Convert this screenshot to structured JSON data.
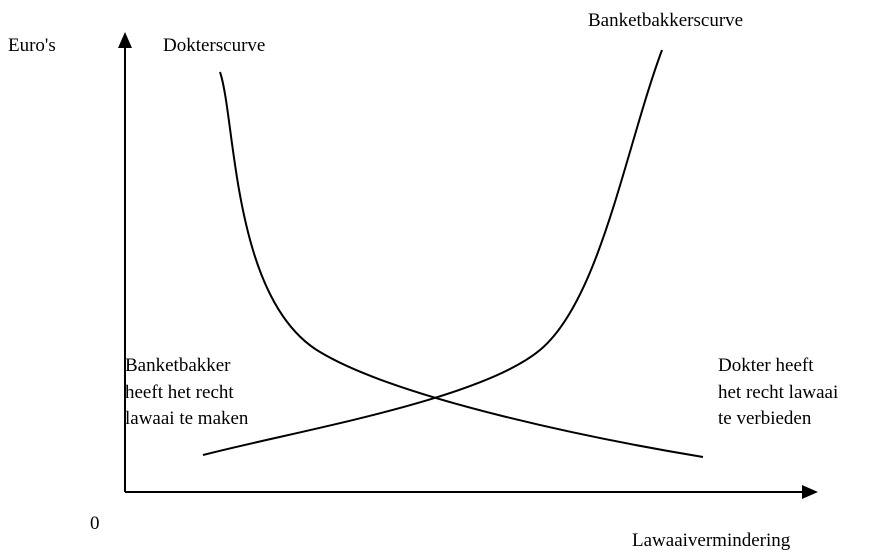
{
  "axes": {
    "y_label": "Euro's",
    "x_label": "Lawaaivermindering",
    "origin": "0"
  },
  "curves": {
    "dokter": "Dokterscurve",
    "banketbakker": "Banketbakkerscurve"
  },
  "notes": {
    "left": [
      "Banketbakker",
      "heeft het recht",
      "lawaai te maken"
    ],
    "right": [
      "Dokter heeft",
      "het recht lawaai",
      "te verbieden"
    ]
  }
}
